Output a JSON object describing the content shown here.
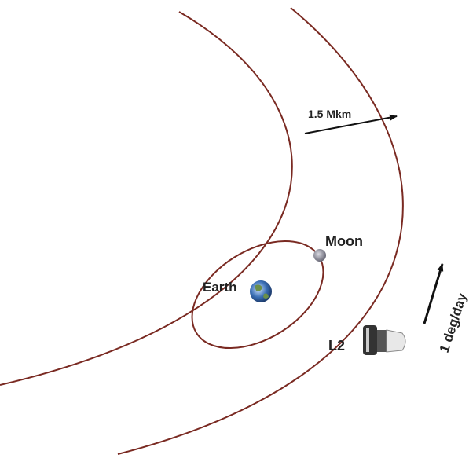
{
  "labels": {
    "distance": "1.5 Mkm",
    "moon": "Moon",
    "earth": "Earth",
    "l2": "L2",
    "rate": "1 deg/day"
  }
}
